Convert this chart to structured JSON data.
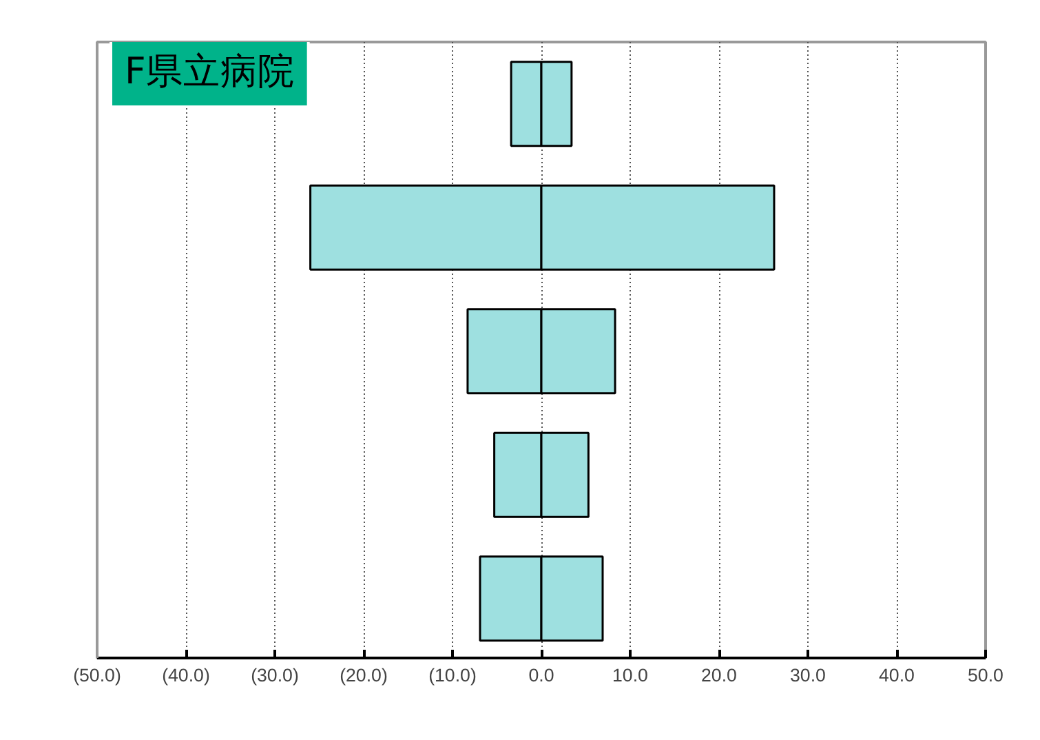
{
  "chart_data": {
    "type": "bar",
    "orientation": "horizontal",
    "title": "F県立病院",
    "categories": [
      null,
      null,
      null,
      null,
      null
    ],
    "series": [
      {
        "color": "#9ee0e0",
        "values": [
          -3.4,
          -26.0,
          -8.3,
          -5.3,
          -6.9
        ]
      },
      {
        "color": "#9ee0e0",
        "values": [
          3.4,
          26.2,
          8.3,
          5.3,
          6.9
        ]
      }
    ],
    "xlim": [
      -50,
      50
    ],
    "xticks": [
      {
        "value": -50,
        "label": "(50.0)"
      },
      {
        "value": -40,
        "label": "(40.0)"
      },
      {
        "value": -30,
        "label": "(30.0)"
      },
      {
        "value": -20,
        "label": "(20.0)"
      },
      {
        "value": -10,
        "label": "(10.0)"
      },
      {
        "value": 0,
        "label": "0.0"
      },
      {
        "value": 10,
        "label": "10.0"
      },
      {
        "value": 20,
        "label": "20.0"
      },
      {
        "value": 30,
        "label": "30.0"
      },
      {
        "value": 40,
        "label": "40.0"
      },
      {
        "value": 50,
        "label": "50.0"
      }
    ],
    "stacked": true,
    "grid": "x",
    "tick_labels": "x"
  }
}
